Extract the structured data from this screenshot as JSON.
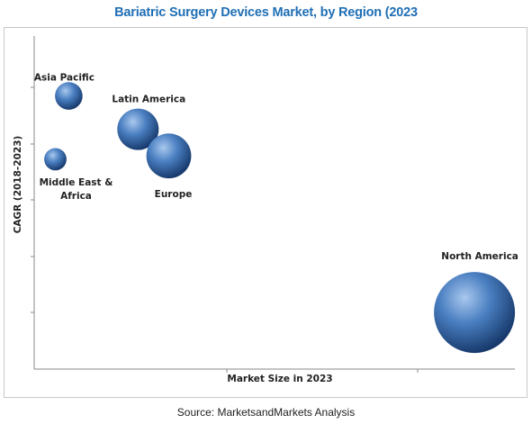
{
  "chart_data": {
    "type": "bubble",
    "title": "Bariatric Surgery Devices Market, by Region (2023",
    "xlabel": "Market Size in 2023",
    "ylabel": "CAGR (2018-2023)",
    "axis_values_shown": false,
    "grid": false,
    "points": [
      {
        "label": "Asia Pacific",
        "x": 0.18,
        "y": 0.82,
        "size": 0.16,
        "label_lines": [
          "Asia Pacific"
        ]
      },
      {
        "label": "Latin America",
        "x": 0.54,
        "y": 0.72,
        "size": 0.24,
        "label_lines": [
          "Latin America"
        ]
      },
      {
        "label": "Middle East & Africa",
        "x": 0.11,
        "y": 0.63,
        "size": 0.13,
        "label_lines": [
          "Middle East &",
          "Africa"
        ]
      },
      {
        "label": "Europe",
        "x": 0.7,
        "y": 0.64,
        "size": 0.26,
        "label_lines": [
          "Europe"
        ]
      },
      {
        "label": "North America",
        "x": 2.29,
        "y": 0.17,
        "size": 0.47,
        "label_lines": [
          "North America"
        ]
      }
    ]
  },
  "source": "Source: MarketsandMarkets Analysis",
  "colors": {
    "title": "#1f6fb5",
    "bubble_light": "#a9c8ee",
    "bubble_mid": "#4a7fc1",
    "bubble_dark": "#16386a",
    "axis": "#8a8a8a"
  }
}
